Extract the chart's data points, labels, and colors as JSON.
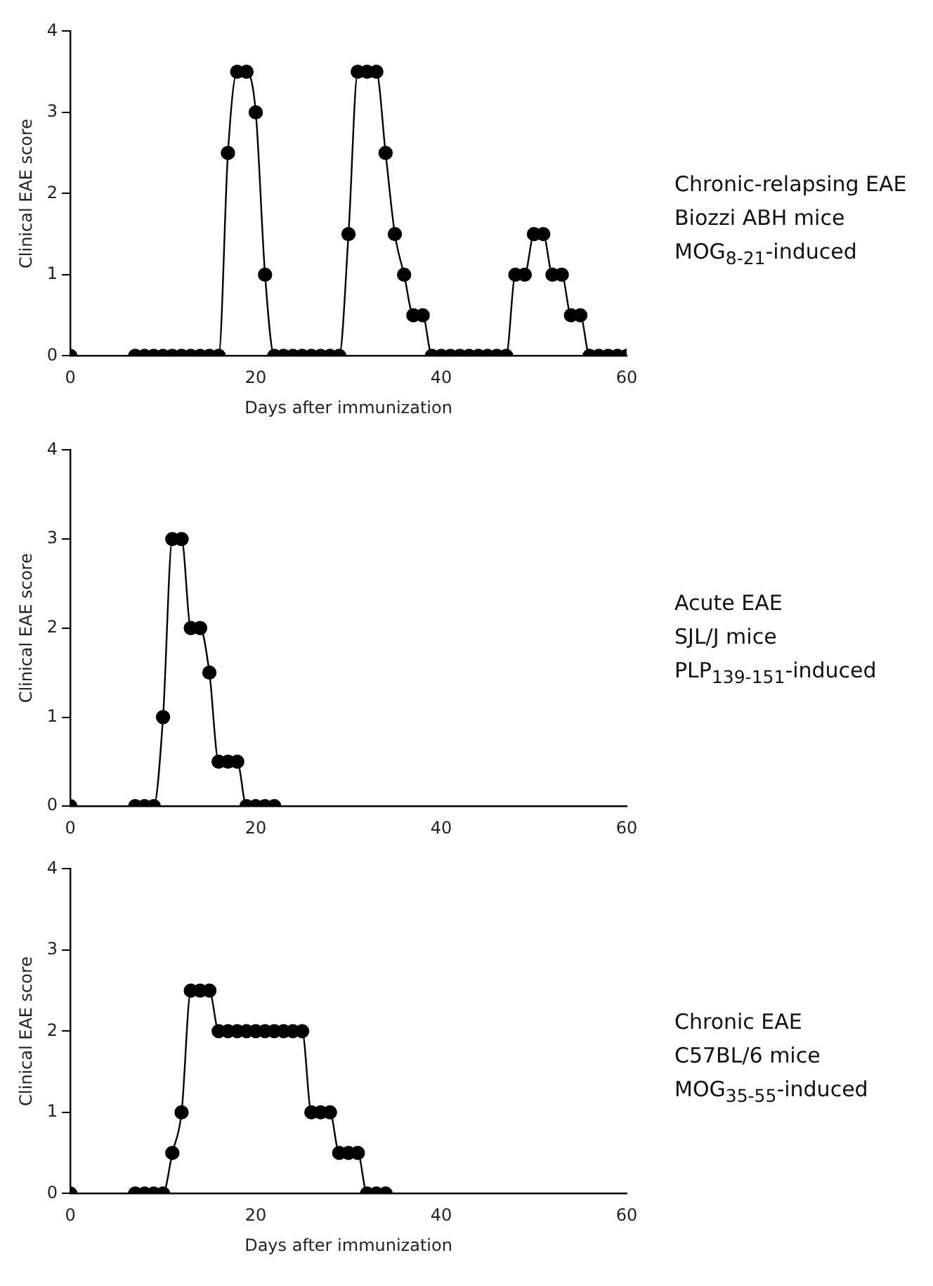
{
  "chart_data": [
    {
      "type": "line",
      "ylabel": "Clinical EAE score",
      "xlabel": "Days after immunization",
      "annotations": [
        "Chronic-relapsing EAE",
        "Biozzi ABH mice",
        "MOG$_{8-21}$-induced"
      ],
      "marker": "circle",
      "grid": false,
      "legend": false,
      "xlim": [
        0,
        60
      ],
      "xticks": [
        0,
        20,
        40,
        60
      ],
      "ylim": [
        0,
        4
      ],
      "yticks": [
        0,
        1,
        2,
        3,
        4
      ],
      "x": [
        0,
        7,
        8,
        9,
        10,
        11,
        12,
        13,
        14,
        15,
        16,
        17,
        18,
        19,
        20,
        21,
        22,
        23,
        24,
        25,
        26,
        27,
        28,
        29,
        30,
        31,
        32,
        33,
        34,
        35,
        36,
        37,
        38,
        39,
        40,
        41,
        42,
        43,
        44,
        45,
        46,
        47,
        48,
        49,
        50,
        51,
        52,
        53,
        54,
        55,
        56,
        57,
        58,
        59,
        60
      ],
      "series": [
        {
          "color": "#000000",
          "values": [
            0,
            0,
            0,
            0,
            0,
            0,
            0,
            0,
            0,
            0,
            0,
            2.5,
            3.5,
            3.5,
            3,
            1,
            0,
            0,
            0,
            0,
            0,
            0,
            0,
            0,
            1.5,
            3.5,
            3.5,
            3.5,
            2.5,
            1.5,
            1,
            0.5,
            0.5,
            0,
            0,
            0,
            0,
            0,
            0,
            0,
            0,
            0,
            1,
            1,
            1.5,
            1.5,
            1,
            1,
            0.5,
            0.5,
            0,
            0,
            0,
            0,
            0
          ]
        }
      ]
    },
    {
      "type": "line",
      "ylabel": "Clinical EAE score",
      "annotations": [
        "Acute EAE",
        "SJL/J mice",
        "PLP$_{139-151}$-induced"
      ],
      "marker": "circle",
      "grid": false,
      "legend": false,
      "xlim": [
        0,
        60
      ],
      "xticks": [
        0,
        20,
        40,
        60
      ],
      "ylim": [
        0,
        4
      ],
      "yticks": [
        0,
        1,
        2,
        3,
        4
      ],
      "x": [
        0,
        7,
        8,
        9,
        10,
        11,
        12,
        13,
        14,
        15,
        16,
        17,
        18,
        19,
        20,
        21,
        22
      ],
      "series": [
        {
          "color": "#000000",
          "values": [
            0,
            0,
            0,
            0,
            1,
            3,
            3,
            2,
            2,
            1.5,
            0.5,
            0.5,
            0.5,
            0,
            0,
            0,
            0
          ]
        }
      ]
    },
    {
      "type": "line",
      "ylabel": "Clinical EAE score",
      "xlabel": "Days after immunization",
      "annotations": [
        "Chronic EAE",
        "C57BL/6 mice",
        "MOG$_{35-55}$-induced"
      ],
      "marker": "circle",
      "grid": false,
      "legend": false,
      "xlim": [
        0,
        60
      ],
      "xticks": [
        0,
        20,
        40,
        60
      ],
      "ylim": [
        0,
        4
      ],
      "yticks": [
        0,
        1,
        2,
        3,
        4
      ],
      "x": [
        0,
        7,
        8,
        9,
        10,
        11,
        12,
        13,
        14,
        15,
        16,
        17,
        18,
        19,
        20,
        21,
        22,
        23,
        24,
        25,
        26,
        27,
        28,
        29,
        30,
        31,
        32,
        33,
        34
      ],
      "series": [
        {
          "color": "#000000",
          "values": [
            0,
            0,
            0,
            0,
            0,
            0.5,
            1,
            2.5,
            2.5,
            2.5,
            2,
            2,
            2,
            2,
            2,
            2,
            2,
            2,
            2,
            2,
            1,
            1,
            1,
            0.5,
            0.5,
            0.5,
            0,
            0,
            0
          ]
        }
      ]
    }
  ]
}
